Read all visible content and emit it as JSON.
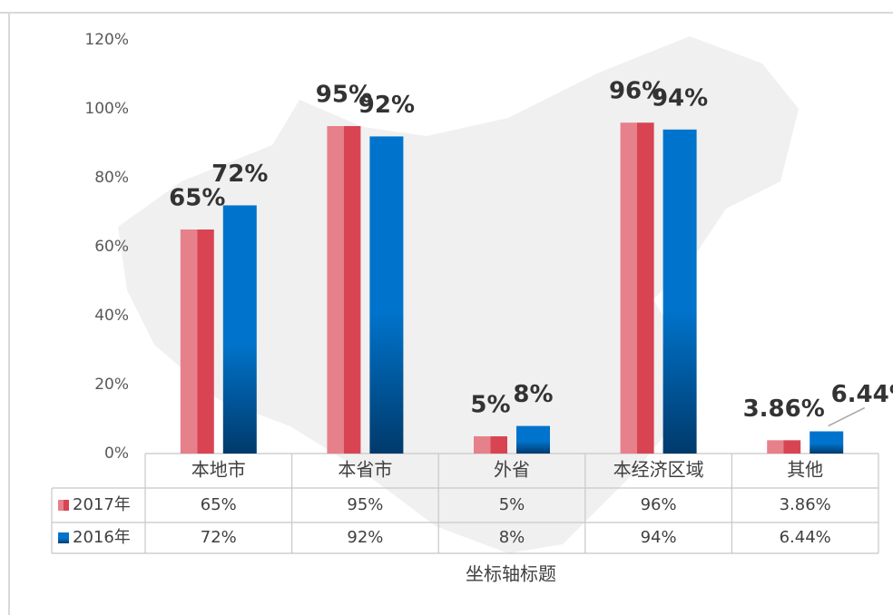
{
  "chart_data": {
    "type": "bar",
    "categories": [
      "本地市",
      "本省市",
      "外省",
      "本经济区域",
      "其他"
    ],
    "series": [
      {
        "name": "2017年",
        "color": "#d94452",
        "values": [
          65,
          95,
          5,
          96,
          3.86
        ],
        "value_labels": [
          "65%",
          "95%",
          "5%",
          "96%",
          "3.86%"
        ]
      },
      {
        "name": "2016年",
        "color": "#0074cc",
        "values": [
          72,
          92,
          8,
          94,
          6.44
        ],
        "value_labels": [
          "72%",
          "92%",
          "8%",
          "94%",
          "6.44%"
        ]
      }
    ],
    "ylim": [
      0,
      120
    ],
    "yticks": [
      {
        "value": 0,
        "label": "0%"
      },
      {
        "value": 20,
        "label": "20%"
      },
      {
        "value": 40,
        "label": "40%"
      },
      {
        "value": 60,
        "label": "60%"
      },
      {
        "value": 80,
        "label": "80%"
      },
      {
        "value": 100,
        "label": "100%"
      },
      {
        "value": 120,
        "label": "120%"
      }
    ],
    "x_axis_title": "坐标轴标题"
  }
}
